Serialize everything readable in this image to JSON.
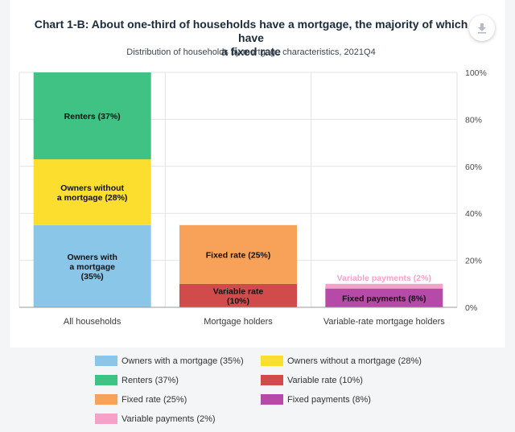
{
  "header": {
    "title_line1": "Chart 1-B: About one-third of households have a mortgage, the majority of which have",
    "title_line2": "a fixed rate",
    "subtitle": "Distribution of households by mortgage characteristics, 2021Q4",
    "download_icon": "download-icon"
  },
  "chart_data": {
    "type": "bar",
    "stacked": true,
    "categories": [
      "All households",
      "Mortgage holders",
      "Variable-rate mortgage holders"
    ],
    "ylim": [
      0,
      100
    ],
    "yticks": [
      "0%",
      "20%",
      "40%",
      "60%",
      "80%",
      "100%"
    ],
    "y_axis_position": "right",
    "grid": true,
    "legend_placement": "bottom",
    "segments": [
      {
        "category": 0,
        "series": "Owners with a mortgage (35%)",
        "value": 35,
        "base": 0,
        "color": "#8ac6e8",
        "label": [
          "Owners with",
          "a mortgage",
          "(35%)"
        ]
      },
      {
        "category": 0,
        "series": "Owners without a mortgage (28%)",
        "value": 28,
        "base": 35,
        "color": "#fbde2e",
        "label": [
          "Owners without",
          "a mortgage (28%)"
        ]
      },
      {
        "category": 0,
        "series": "Renters (37%)",
        "value": 37,
        "base": 63,
        "color": "#3fc283",
        "label": [
          "Renters (37%)"
        ]
      },
      {
        "category": 1,
        "series": "Variable rate (10%)",
        "value": 10,
        "base": 0,
        "color": "#d24b4b",
        "label": [
          "Variable rate",
          "(10%)"
        ]
      },
      {
        "category": 1,
        "series": "Fixed rate (25%)",
        "value": 25,
        "base": 10,
        "color": "#f7a258",
        "label": [
          "Fixed rate (25%)"
        ]
      },
      {
        "category": 2,
        "series": "Fixed payments (8%)",
        "value": 8,
        "base": 0,
        "color": "#b64aa8",
        "label": [
          "Fixed payments (8%)"
        ]
      },
      {
        "category": 2,
        "series": "Variable payments (2%)",
        "value": 2,
        "base": 8,
        "color": "#f5a2c9",
        "label": [
          "Variable payments (2%)"
        ],
        "label_outside": true
      }
    ],
    "legend": [
      {
        "label": "Owners with a mortgage (35%)",
        "color": "#8ac6e8"
      },
      {
        "label": "Owners without a mortgage (28%)",
        "color": "#fbde2e"
      },
      {
        "label": "Renters (37%)",
        "color": "#3fc283"
      },
      {
        "label": "Variable rate (10%)",
        "color": "#d24b4b"
      },
      {
        "label": "Fixed rate (25%)",
        "color": "#f7a258"
      },
      {
        "label": "Fixed payments (8%)",
        "color": "#b64aa8"
      },
      {
        "label": "Variable payments (2%)",
        "color": "#f5a2c9"
      }
    ]
  }
}
